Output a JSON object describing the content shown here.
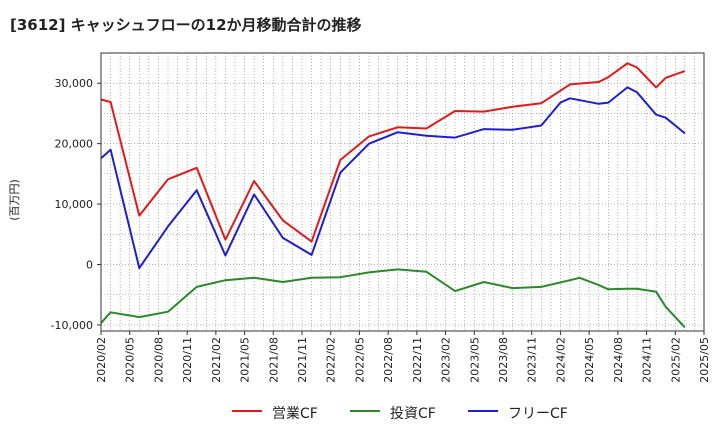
{
  "chart_data": {
    "type": "line",
    "title": "[3612]  キャッシュフローの12か月移動合計の推移",
    "ylabel": "(百万円)",
    "xlabel": "",
    "ylim": [
      -11000,
      35000
    ],
    "yticks": [
      -10000,
      0,
      10000,
      20000,
      30000
    ],
    "ytick_labels": [
      "-10,000",
      "0",
      "10,000",
      "20,000",
      "30,000"
    ],
    "xticks": [
      "2020/02",
      "2020/05",
      "2020/08",
      "2020/11",
      "2021/02",
      "2021/05",
      "2021/08",
      "2021/11",
      "2022/02",
      "2022/05",
      "2022/08",
      "2022/11",
      "2023/02",
      "2023/05",
      "2023/08",
      "2023/11",
      "2024/02",
      "2024/05",
      "2024/08",
      "2024/11",
      "2025/02",
      "2025/05"
    ],
    "grid": true,
    "x_months": [
      0,
      1,
      4,
      7,
      10,
      13,
      16,
      19,
      22,
      25,
      28,
      31,
      34,
      37,
      40,
      43,
      46,
      47,
      48,
      49,
      50,
      51,
      52,
      53,
      54,
      55,
      56,
      57,
      58,
      59,
      60
    ],
    "series": [
      {
        "name": "営業CF",
        "color": "#e31a1c",
        "points": [
          [
            0,
            27300
          ],
          [
            1,
            26900
          ],
          [
            4,
            8100
          ],
          [
            7,
            14100
          ],
          [
            10,
            16000
          ],
          [
            13,
            4100
          ],
          [
            16,
            13800
          ],
          [
            19,
            7300
          ],
          [
            22,
            3800
          ],
          [
            25,
            17300
          ],
          [
            28,
            21200
          ],
          [
            31,
            22700
          ],
          [
            34,
            22500
          ],
          [
            37,
            25400
          ],
          [
            40,
            25300
          ],
          [
            43,
            26100
          ],
          [
            46,
            26700
          ],
          [
            49,
            29800
          ],
          [
            52,
            30200
          ],
          [
            53,
            31000
          ],
          [
            55,
            33300
          ],
          [
            56,
            32600
          ],
          [
            58,
            29300
          ],
          [
            59,
            30900
          ],
          [
            61,
            32000
          ]
        ]
      },
      {
        "name": "投資CF",
        "color": "#2a8a2a",
        "points": [
          [
            0,
            -9700
          ],
          [
            1,
            -7900
          ],
          [
            4,
            -8700
          ],
          [
            7,
            -7800
          ],
          [
            10,
            -3700
          ],
          [
            13,
            -2600
          ],
          [
            16,
            -2200
          ],
          [
            19,
            -2900
          ],
          [
            22,
            -2200
          ],
          [
            25,
            -2100
          ],
          [
            28,
            -1300
          ],
          [
            31,
            -800
          ],
          [
            34,
            -1200
          ],
          [
            37,
            -4400
          ],
          [
            40,
            -2900
          ],
          [
            43,
            -3900
          ],
          [
            46,
            -3700
          ],
          [
            49,
            -2600
          ],
          [
            50,
            -2200
          ],
          [
            52,
            -3400
          ],
          [
            53,
            -4100
          ],
          [
            55,
            -4000
          ],
          [
            56,
            -4000
          ],
          [
            58,
            -4500
          ],
          [
            59,
            -7000
          ],
          [
            61,
            -10400
          ]
        ]
      },
      {
        "name": "フリーCF",
        "color": "#1f1fcf",
        "points": [
          [
            0,
            17600
          ],
          [
            1,
            19000
          ],
          [
            4,
            -600
          ],
          [
            7,
            6300
          ],
          [
            10,
            12300
          ],
          [
            13,
            1500
          ],
          [
            16,
            11600
          ],
          [
            19,
            4400
          ],
          [
            22,
            1600
          ],
          [
            25,
            15200
          ],
          [
            28,
            20000
          ],
          [
            31,
            21900
          ],
          [
            34,
            21300
          ],
          [
            37,
            21000
          ],
          [
            40,
            22400
          ],
          [
            43,
            22300
          ],
          [
            46,
            23000
          ],
          [
            48,
            26800
          ],
          [
            49,
            27500
          ],
          [
            52,
            26600
          ],
          [
            53,
            26800
          ],
          [
            55,
            29300
          ],
          [
            56,
            28500
          ],
          [
            58,
            24800
          ],
          [
            59,
            24300
          ],
          [
            61,
            21700
          ]
        ]
      }
    ],
    "legend": {
      "position": "bottom"
    }
  }
}
